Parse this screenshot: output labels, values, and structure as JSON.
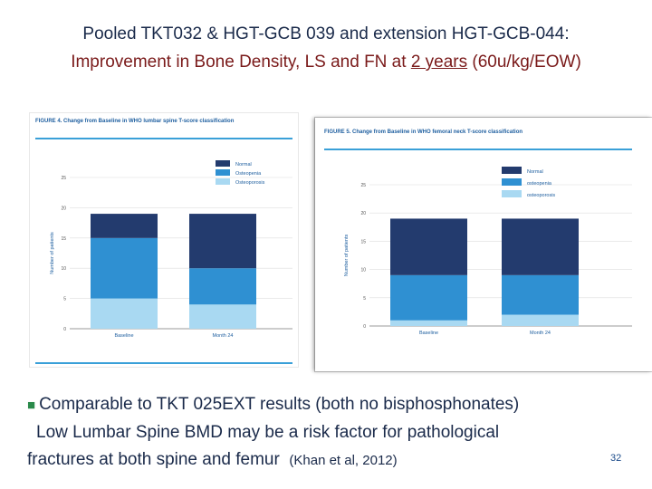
{
  "slide": {
    "title_line1": "Pooled TKT032 & HGT-GCB 039 and extension HGT-GCB-044:",
    "title_line2_pre": "Improvement in Bone Density, LS and FN at ",
    "title_line2_ul": "2 years",
    "title_line2_post": " (60u/kg/EOW)",
    "bullet_line1": "Comparable to TKT 025EXT results (both no bisphosphonates)",
    "bullet_line2": "Low Lumbar Spine BMD may be a risk factor for pathological",
    "bullet_line3": "fractures at both spine and femur",
    "citation": "(Khan et al, 2012)",
    "page_number": "32"
  },
  "chart_data": [
    {
      "type": "bar",
      "stacked": true,
      "title": "FIGURE 4. Change from Baseline in WHO lumbar spine T-score classification",
      "ylabel": "Number of patients",
      "ylim": [
        0,
        25
      ],
      "yticks": [
        "0",
        "5",
        "10",
        "15",
        "20",
        "25"
      ],
      "categories": [
        "Baseline",
        "Month 24"
      ],
      "legend": [
        "Normal",
        "Osteopenia",
        "Osteoporosis"
      ],
      "colors": [
        "#233b6e",
        "#2f90d2",
        "#a9d9f2"
      ],
      "series": [
        {
          "name": "Osteoporosis",
          "values": [
            5,
            4
          ]
        },
        {
          "name": "Osteopenia",
          "values": [
            10,
            6
          ]
        },
        {
          "name": "Normal",
          "values": [
            4,
            9
          ]
        }
      ]
    },
    {
      "type": "bar",
      "stacked": true,
      "title": "FIGURE 5. Change from Baseline in WHO femoral neck T-score classification",
      "ylabel": "Number of patients",
      "ylim": [
        0,
        25
      ],
      "yticks": [
        "0",
        "5",
        "10",
        "15",
        "20",
        "25"
      ],
      "categories": [
        "Baseline",
        "Month 24"
      ],
      "legend": [
        "Normal",
        "osteopenia",
        "osteoporosis"
      ],
      "colors": [
        "#233b6e",
        "#2f90d2",
        "#a9d9f2"
      ],
      "series": [
        {
          "name": "osteoporosis",
          "values": [
            1,
            2
          ]
        },
        {
          "name": "osteopenia",
          "values": [
            8,
            7
          ]
        },
        {
          "name": "Normal",
          "values": [
            10,
            10
          ]
        }
      ]
    }
  ]
}
